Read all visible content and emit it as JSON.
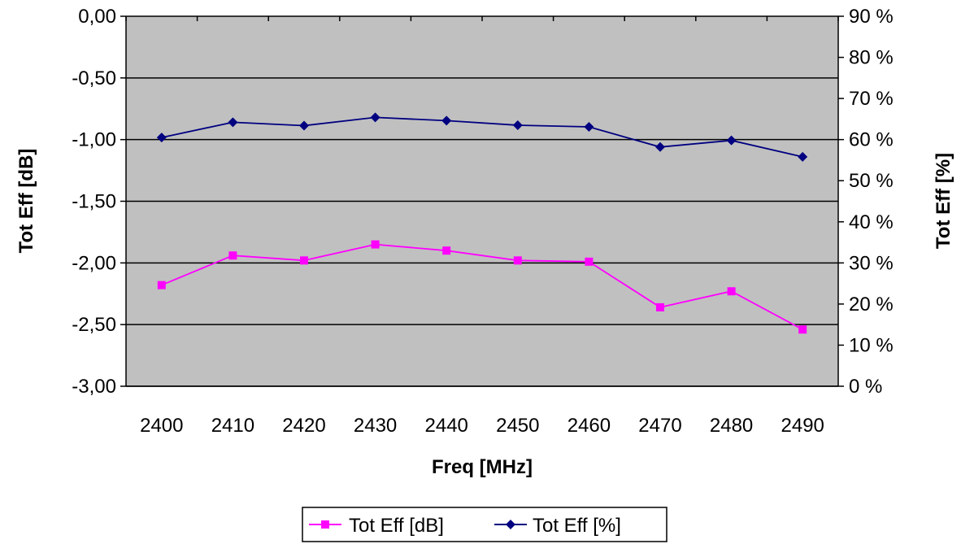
{
  "chart_data": {
    "type": "line",
    "categories": [
      "2400",
      "2410",
      "2420",
      "2430",
      "2440",
      "2450",
      "2460",
      "2470",
      "2480",
      "2490"
    ],
    "xlabel": "Freq [MHz]",
    "ylabel": "Tot Eff [dB]",
    "y2label": "Tot Eff [%]",
    "ylim": [
      -3.0,
      0.0
    ],
    "y2lim": [
      0,
      90
    ],
    "yticks": [
      "0,00",
      "-0,50",
      "-1,00",
      "-1,50",
      "-2,00",
      "-2,50",
      "-3,00"
    ],
    "y2ticks": [
      "90 %",
      "80 %",
      "70 %",
      "60 %",
      "50 %",
      "40 %",
      "30 %",
      "20 %",
      "10 %",
      "0 %"
    ],
    "grid": true,
    "legend_position": "bottom",
    "plot_background": "#c0c0c0",
    "series": [
      {
        "name": "Tot Eff [dB]",
        "axis": "left",
        "color": "#ff00ff",
        "marker": "square",
        "values": [
          -2.18,
          -1.94,
          -1.98,
          -1.85,
          -1.9,
          -1.98,
          -1.99,
          -2.36,
          -2.23,
          -2.54
        ]
      },
      {
        "name": "Tot Eff [%]",
        "axis": "right",
        "color": "#000080",
        "marker": "diamond",
        "values": [
          60.5,
          64.2,
          63.4,
          65.4,
          64.6,
          63.5,
          63.1,
          58.2,
          59.8,
          55.8
        ]
      }
    ]
  }
}
